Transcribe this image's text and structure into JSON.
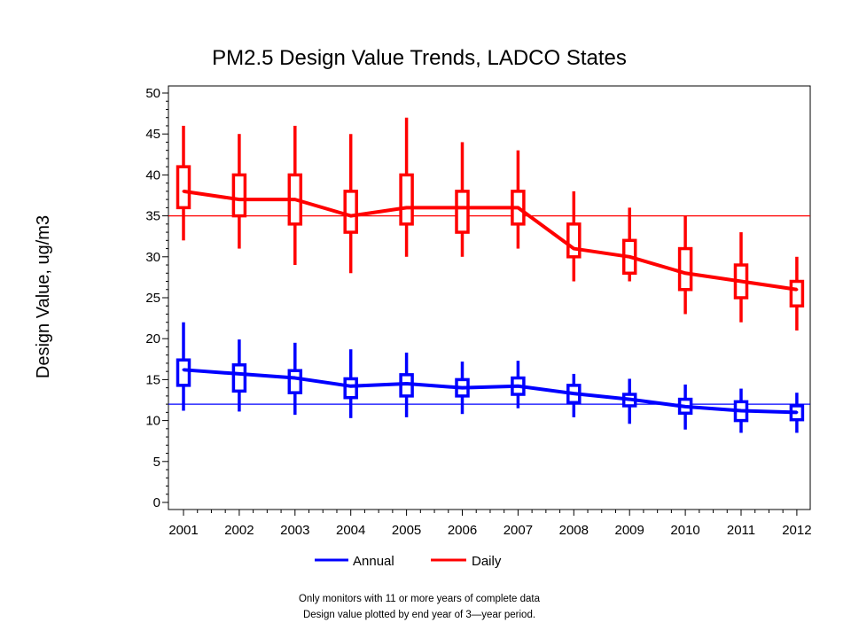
{
  "chart_data": {
    "type": "line",
    "title": "PM2.5 Design Value Trends, LADCO States",
    "ylabel": "Design Value, ug/m3",
    "xlabel": "",
    "ylim": [
      0,
      50
    ],
    "yticks": [
      "0",
      "5",
      "10",
      "15",
      "20",
      "25",
      "30",
      "35",
      "40",
      "45",
      "50"
    ],
    "categories": [
      "2001",
      "2002",
      "2003",
      "2004",
      "2005",
      "2006",
      "2007",
      "2008",
      "2009",
      "2010",
      "2011",
      "2012"
    ],
    "reference_lines": [
      {
        "value": 35,
        "color": "#ff0000"
      },
      {
        "value": 12,
        "color": "#0000ff"
      }
    ],
    "series": [
      {
        "name": "Annual",
        "color": "#0000ff",
        "values": [
          16.2,
          15.7,
          15.2,
          14.2,
          14.5,
          14.0,
          14.2,
          13.3,
          12.6,
          11.7,
          11.2,
          11.0
        ],
        "box_low": [
          14.3,
          13.6,
          13.4,
          12.8,
          13.0,
          13.0,
          13.2,
          12.2,
          11.8,
          10.9,
          10.0,
          10.1
        ],
        "box_high": [
          17.4,
          16.8,
          16.1,
          15.1,
          15.6,
          15.0,
          15.2,
          14.3,
          13.2,
          12.6,
          12.3,
          11.8
        ],
        "whisker_low": [
          11.2,
          11.1,
          10.7,
          10.3,
          10.4,
          10.8,
          11.5,
          10.4,
          9.6,
          8.9,
          8.5,
          8.5
        ],
        "whisker_high": [
          22.0,
          19.9,
          19.5,
          18.7,
          18.3,
          17.2,
          17.3,
          15.7,
          15.1,
          14.4,
          13.9,
          13.4
        ]
      },
      {
        "name": "Daily",
        "color": "#ff0000",
        "values": [
          38,
          37,
          37,
          35,
          36,
          36,
          36,
          31,
          30,
          28,
          27,
          26
        ],
        "box_low": [
          36,
          35,
          34,
          33,
          34,
          33,
          34,
          30,
          28,
          26,
          25,
          24
        ],
        "box_high": [
          41,
          40,
          40,
          38,
          40,
          38,
          38,
          34,
          32,
          31,
          29,
          27
        ],
        "whisker_low": [
          32,
          31,
          29,
          28,
          30,
          30,
          31,
          27,
          27,
          23,
          22,
          21
        ],
        "whisker_high": [
          46,
          45,
          46,
          45,
          47,
          44,
          43,
          38,
          36,
          35,
          33,
          30
        ]
      }
    ],
    "legend_position": "bottom",
    "notes": [
      "Only monitors with 11 or more years of complete data",
      "Design value plotted by end year of 3—year period."
    ]
  }
}
